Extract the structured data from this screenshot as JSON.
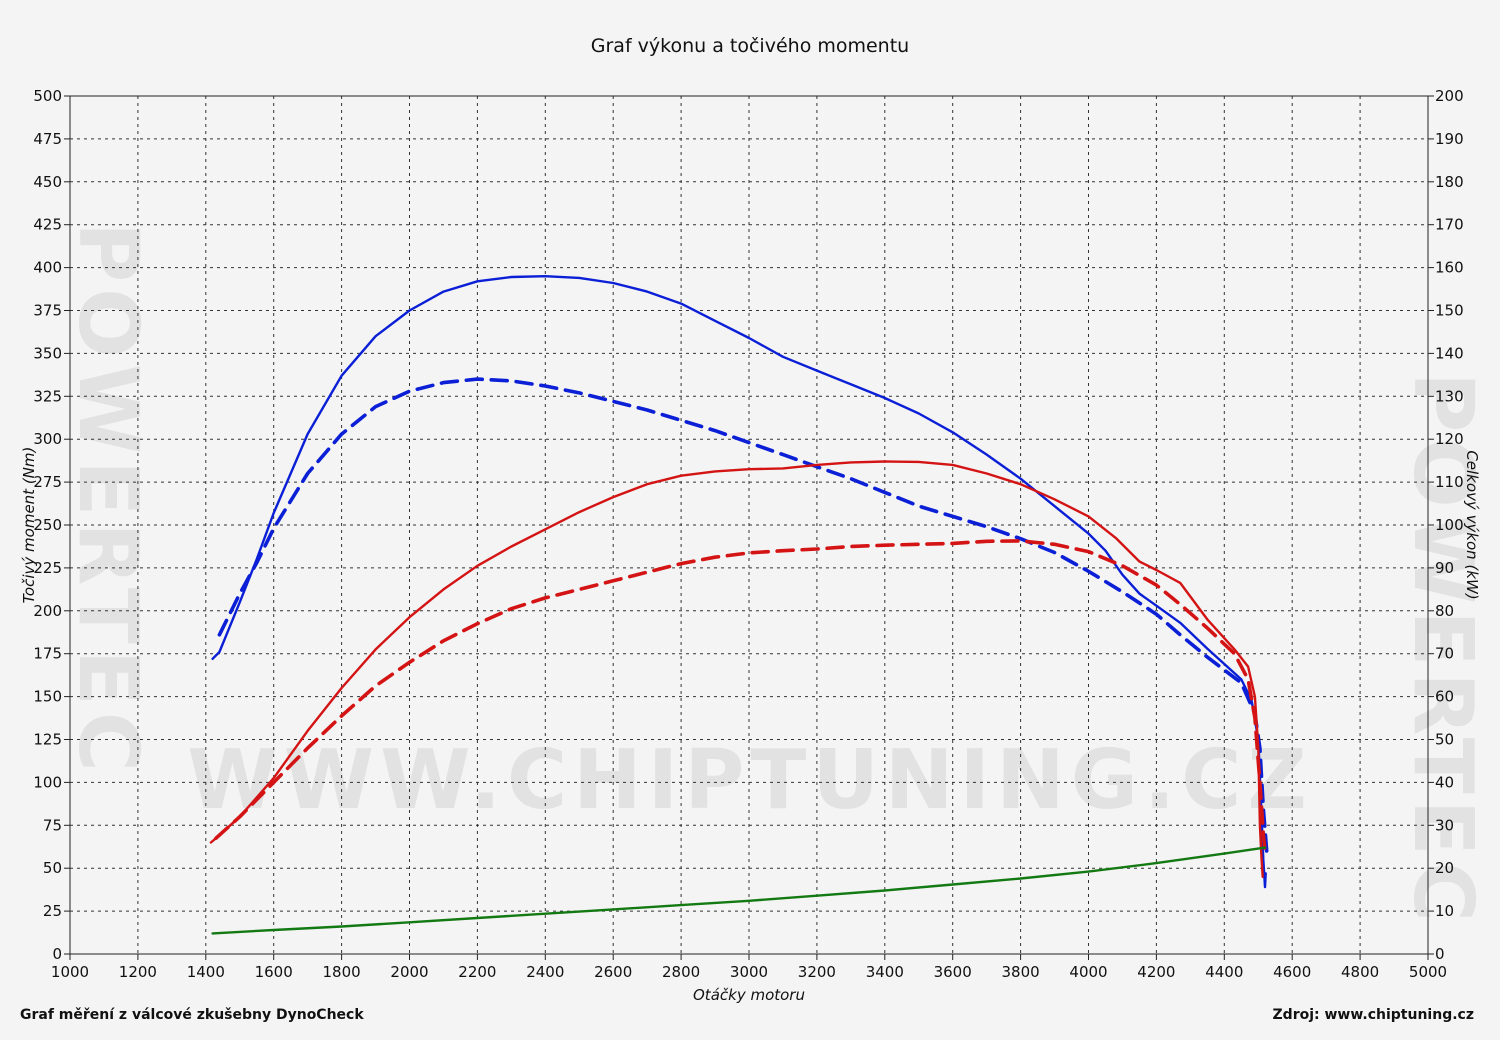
{
  "footer": {
    "left": "Graf měření z válcové zkušebny DynoCheck",
    "right": "Zdroj: www.chiptuning.cz"
  },
  "watermark": {
    "text": "WWW.CHIPTUNING.CZ",
    "side_text": "POWERTEC"
  },
  "chart_data": {
    "type": "line",
    "title": "Graf výkonu a točivého momentu",
    "xlabel": "Otáčky motoru",
    "ylabel_left": "Točivý moment (Nm)",
    "ylabel_right": "Celkový výkon (kW)",
    "xlim": [
      1000,
      5000
    ],
    "ylim_left": [
      0,
      500
    ],
    "ylim_right": [
      0,
      200
    ],
    "x_ticks": [
      1000,
      1200,
      1400,
      1600,
      1800,
      2000,
      2200,
      2400,
      2600,
      2800,
      3000,
      3200,
      3400,
      3600,
      3800,
      4000,
      4200,
      4400,
      4600,
      4800,
      5000
    ],
    "y_ticks_left": [
      0,
      25,
      50,
      75,
      100,
      125,
      150,
      175,
      200,
      225,
      250,
      275,
      300,
      325,
      350,
      375,
      400,
      425,
      450,
      475,
      500
    ],
    "y_ticks_right": [
      0,
      10,
      20,
      30,
      40,
      50,
      60,
      70,
      80,
      90,
      100,
      110,
      120,
      130,
      140,
      150,
      160,
      170,
      180,
      190,
      200
    ],
    "grid": true,
    "series": [
      {
        "axis": "left",
        "color": "#0b1fd6",
        "dashed": false,
        "points": [
          [
            1420,
            172
          ],
          [
            1440,
            176
          ],
          [
            1500,
            205
          ],
          [
            1550,
            230
          ],
          [
            1600,
            257
          ],
          [
            1700,
            303
          ],
          [
            1800,
            337
          ],
          [
            1900,
            360
          ],
          [
            2000,
            375
          ],
          [
            2100,
            386
          ],
          [
            2200,
            392
          ],
          [
            2300,
            394.5
          ],
          [
            2400,
            395
          ],
          [
            2500,
            394
          ],
          [
            2600,
            391
          ],
          [
            2700,
            386
          ],
          [
            2800,
            379
          ],
          [
            2900,
            369
          ],
          [
            3000,
            359
          ],
          [
            3100,
            348
          ],
          [
            3200,
            340
          ],
          [
            3300,
            332
          ],
          [
            3400,
            324
          ],
          [
            3500,
            315
          ],
          [
            3600,
            304
          ],
          [
            3700,
            291
          ],
          [
            3800,
            277
          ],
          [
            3900,
            261
          ],
          [
            4000,
            245
          ],
          [
            4050,
            235
          ],
          [
            4100,
            221
          ],
          [
            4150,
            210
          ],
          [
            4200,
            203
          ],
          [
            4270,
            193
          ],
          [
            4350,
            178
          ],
          [
            4450,
            160
          ],
          [
            4480,
            148
          ],
          [
            4500,
            125
          ],
          [
            4510,
            80
          ],
          [
            4515,
            55
          ],
          [
            4520,
            39
          ],
          [
            4522,
            47
          ]
        ]
      },
      {
        "axis": "left",
        "color": "#0b1fd6",
        "dashed": true,
        "points": [
          [
            1440,
            186
          ],
          [
            1500,
            210
          ],
          [
            1550,
            228
          ],
          [
            1600,
            248
          ],
          [
            1700,
            280
          ],
          [
            1800,
            303
          ],
          [
            1900,
            319
          ],
          [
            2000,
            328
          ],
          [
            2100,
            333
          ],
          [
            2200,
            335
          ],
          [
            2300,
            334
          ],
          [
            2400,
            331
          ],
          [
            2500,
            327
          ],
          [
            2600,
            322
          ],
          [
            2700,
            317
          ],
          [
            2800,
            311
          ],
          [
            2900,
            305
          ],
          [
            3000,
            298
          ],
          [
            3100,
            291
          ],
          [
            3200,
            284
          ],
          [
            3300,
            277
          ],
          [
            3400,
            269
          ],
          [
            3500,
            261
          ],
          [
            3600,
            255
          ],
          [
            3700,
            249
          ],
          [
            3800,
            242
          ],
          [
            3900,
            234
          ],
          [
            4000,
            223
          ],
          [
            4100,
            211
          ],
          [
            4200,
            198
          ],
          [
            4270,
            186
          ],
          [
            4350,
            173
          ],
          [
            4450,
            158
          ],
          [
            4490,
            140
          ],
          [
            4505,
            120
          ],
          [
            4515,
            85
          ],
          [
            4525,
            60
          ],
          [
            4530,
            65
          ]
        ]
      },
      {
        "axis": "right",
        "color": "#d41414",
        "dashed": false,
        "points": [
          [
            1415,
            26
          ],
          [
            1430,
            27
          ],
          [
            1500,
            32
          ],
          [
            1600,
            41
          ],
          [
            1700,
            52
          ],
          [
            1800,
            62
          ],
          [
            1900,
            71
          ],
          [
            2000,
            78.5
          ],
          [
            2100,
            85
          ],
          [
            2200,
            90.5
          ],
          [
            2300,
            95
          ],
          [
            2400,
            99
          ],
          [
            2500,
            103
          ],
          [
            2600,
            106.5
          ],
          [
            2700,
            109.5
          ],
          [
            2800,
            111.5
          ],
          [
            2900,
            112.5
          ],
          [
            3000,
            113
          ],
          [
            3100,
            113.2
          ],
          [
            3200,
            114
          ],
          [
            3300,
            114.6
          ],
          [
            3400,
            114.8
          ],
          [
            3500,
            114.7
          ],
          [
            3600,
            114
          ],
          [
            3700,
            112
          ],
          [
            3800,
            109.5
          ],
          [
            3900,
            106
          ],
          [
            4000,
            102
          ],
          [
            4080,
            97
          ],
          [
            4150,
            91.5
          ],
          [
            4200,
            89.5
          ],
          [
            4270,
            86.5
          ],
          [
            4350,
            78
          ],
          [
            4430,
            71
          ],
          [
            4470,
            67
          ],
          [
            4490,
            60
          ],
          [
            4500,
            48
          ],
          [
            4505,
            30
          ],
          [
            4510,
            22
          ],
          [
            4513,
            18
          ]
        ]
      },
      {
        "axis": "right",
        "color": "#d41414",
        "dashed": true,
        "points": [
          [
            1430,
            27
          ],
          [
            1500,
            32
          ],
          [
            1600,
            40
          ],
          [
            1700,
            48
          ],
          [
            1800,
            55.5
          ],
          [
            1900,
            62.5
          ],
          [
            2000,
            68
          ],
          [
            2100,
            73
          ],
          [
            2200,
            77
          ],
          [
            2300,
            80.5
          ],
          [
            2400,
            83
          ],
          [
            2500,
            85
          ],
          [
            2600,
            87
          ],
          [
            2700,
            89
          ],
          [
            2800,
            91
          ],
          [
            2900,
            92.5
          ],
          [
            3000,
            93.5
          ],
          [
            3100,
            94
          ],
          [
            3200,
            94.4
          ],
          [
            3300,
            95
          ],
          [
            3400,
            95.3
          ],
          [
            3500,
            95.5
          ],
          [
            3600,
            95.7
          ],
          [
            3700,
            96.2
          ],
          [
            3800,
            96.3
          ],
          [
            3900,
            95.5
          ],
          [
            4000,
            93.8
          ],
          [
            4100,
            90.5
          ],
          [
            4200,
            86
          ],
          [
            4270,
            81.5
          ],
          [
            4350,
            76
          ],
          [
            4430,
            70
          ],
          [
            4470,
            64
          ],
          [
            4490,
            55
          ],
          [
            4505,
            40
          ],
          [
            4515,
            28
          ],
          [
            4520,
            24
          ]
        ]
      },
      {
        "axis": "left",
        "color": "#137a13",
        "dashed": false,
        "points": [
          [
            1420,
            12
          ],
          [
            1600,
            14
          ],
          [
            1800,
            16
          ],
          [
            2000,
            18.5
          ],
          [
            2200,
            21
          ],
          [
            2400,
            23.5
          ],
          [
            2600,
            26
          ],
          [
            2800,
            28.5
          ],
          [
            3000,
            31
          ],
          [
            3200,
            34
          ],
          [
            3400,
            37
          ],
          [
            3600,
            40.5
          ],
          [
            3800,
            44
          ],
          [
            4000,
            48
          ],
          [
            4200,
            53
          ],
          [
            4400,
            58.5
          ],
          [
            4520,
            62
          ]
        ]
      }
    ]
  }
}
